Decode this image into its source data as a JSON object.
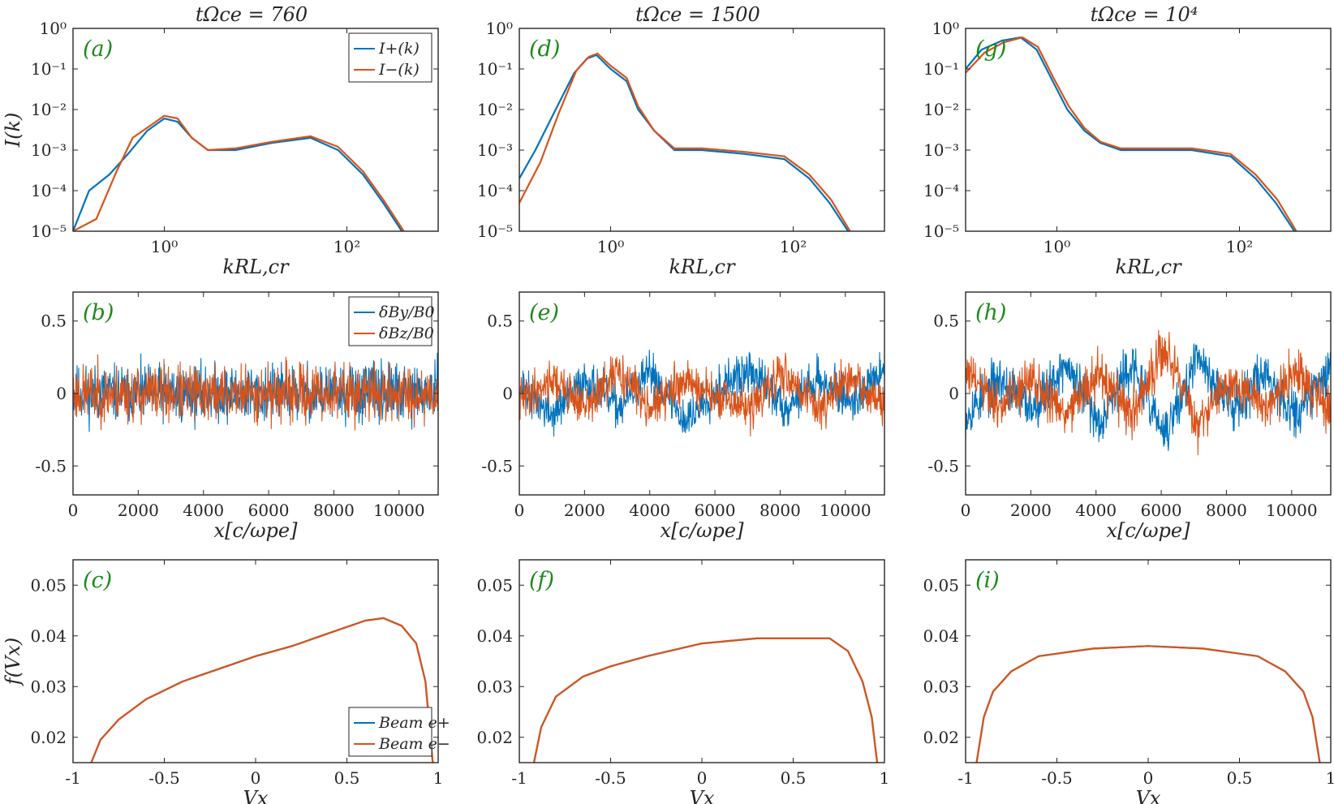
{
  "colors": {
    "series1": "#0072BD",
    "series2": "#D95319",
    "panel_label": "#1c8a1c",
    "axis": "#262626"
  },
  "column_titles": [
    "tΩce = 760",
    "tΩce = 1500",
    "tΩce = 10⁴"
  ],
  "chart_data": [
    {
      "type": "line",
      "panel": "(a)",
      "row": 0,
      "col": 0,
      "xscale": "log",
      "yscale": "log",
      "xlabel": "kRL,cr",
      "ylabel": "I(k)",
      "xlim": [
        0.1,
        1000
      ],
      "ylim": [
        1e-05,
        1
      ],
      "xticks": [
        {
          "v": 1,
          "label": "10⁰"
        },
        {
          "v": 100,
          "label": "10²"
        }
      ],
      "yticks": [
        {
          "v": 1e-05,
          "label": "10⁻⁵"
        },
        {
          "v": 0.0001,
          "label": "10⁻⁴"
        },
        {
          "v": 0.001,
          "label": "10⁻³"
        },
        {
          "v": 0.01,
          "label": "10⁻²"
        },
        {
          "v": 0.1,
          "label": "10⁻¹"
        },
        {
          "v": 1,
          "label": "10⁰"
        }
      ],
      "legend": "top-right",
      "series": [
        {
          "name": "I+(k)",
          "x": [
            0.1,
            0.15,
            0.25,
            0.4,
            0.65,
            1.0,
            1.4,
            2.0,
            3.0,
            6.0,
            15,
            40,
            80,
            150,
            250,
            400
          ],
          "y": [
            1e-05,
            0.0001,
            0.00025,
            0.0008,
            0.003,
            0.006,
            0.005,
            0.002,
            0.001,
            0.001,
            0.0015,
            0.002,
            0.001,
            0.00025,
            5e-05,
            1e-05
          ]
        },
        {
          "name": "I−(k)",
          "x": [
            0.1,
            0.18,
            0.3,
            0.45,
            0.7,
            1.0,
            1.4,
            2.0,
            3.0,
            6.0,
            15,
            40,
            80,
            150,
            250,
            420
          ],
          "y": [
            1e-05,
            2e-05,
            0.0003,
            0.002,
            0.004,
            0.007,
            0.006,
            0.002,
            0.001,
            0.0011,
            0.0016,
            0.0022,
            0.0012,
            0.0003,
            6e-05,
            1e-05
          ]
        }
      ]
    },
    {
      "type": "line",
      "panel": "(d)",
      "row": 0,
      "col": 1,
      "xscale": "log",
      "yscale": "log",
      "xlabel": "kRL,cr",
      "ylabel": "",
      "xlim": [
        0.1,
        1000
      ],
      "ylim": [
        1e-05,
        1
      ],
      "xticks": [
        {
          "v": 1,
          "label": "10⁰"
        },
        {
          "v": 100,
          "label": "10²"
        }
      ],
      "yticks": [
        {
          "v": 1e-05,
          "label": "10⁻⁵"
        },
        {
          "v": 0.0001,
          "label": "10⁻⁴"
        },
        {
          "v": 0.001,
          "label": "10⁻³"
        },
        {
          "v": 0.01,
          "label": "10⁻²"
        },
        {
          "v": 0.1,
          "label": "10⁻¹"
        },
        {
          "v": 1,
          "label": "10⁰"
        }
      ],
      "series": [
        {
          "name": "",
          "x": [
            0.1,
            0.15,
            0.25,
            0.4,
            0.55,
            0.7,
            1.0,
            1.5,
            2.0,
            3.0,
            5.0,
            10,
            30,
            80,
            150,
            250,
            400
          ],
          "y": [
            0.0002,
            0.001,
            0.01,
            0.08,
            0.18,
            0.22,
            0.1,
            0.05,
            0.01,
            0.003,
            0.001,
            0.001,
            0.0008,
            0.0006,
            0.0002,
            5e-05,
            1e-05
          ]
        },
        {
          "name": "",
          "x": [
            0.1,
            0.17,
            0.27,
            0.42,
            0.58,
            0.72,
            1.0,
            1.5,
            2.0,
            3.0,
            5.0,
            10,
            30,
            80,
            150,
            260,
            420
          ],
          "y": [
            5e-05,
            0.0005,
            0.008,
            0.09,
            0.2,
            0.24,
            0.12,
            0.06,
            0.012,
            0.003,
            0.0011,
            0.0011,
            0.0009,
            0.0007,
            0.00025,
            6e-05,
            1e-05
          ]
        }
      ]
    },
    {
      "type": "line",
      "panel": "(g)",
      "row": 0,
      "col": 2,
      "xscale": "log",
      "yscale": "log",
      "xlabel": "kRL,cr",
      "ylabel": "",
      "xlim": [
        0.1,
        1000
      ],
      "ylim": [
        1e-05,
        1
      ],
      "xticks": [
        {
          "v": 1,
          "label": "10⁰"
        },
        {
          "v": 100,
          "label": "10²"
        }
      ],
      "yticks": [
        {
          "v": 1e-05,
          "label": "10⁻⁵"
        },
        {
          "v": 0.0001,
          "label": "10⁻⁴"
        },
        {
          "v": 0.001,
          "label": "10⁻³"
        },
        {
          "v": 0.01,
          "label": "10⁻²"
        },
        {
          "v": 0.1,
          "label": "10⁻¹"
        },
        {
          "v": 1,
          "label": "10⁰"
        }
      ],
      "series": [
        {
          "name": "",
          "x": [
            0.1,
            0.15,
            0.25,
            0.4,
            0.6,
            0.9,
            1.3,
            2.0,
            3.0,
            5.0,
            10,
            30,
            80,
            150,
            250,
            400
          ],
          "y": [
            0.1,
            0.3,
            0.5,
            0.6,
            0.3,
            0.05,
            0.01,
            0.003,
            0.0015,
            0.001,
            0.001,
            0.001,
            0.0007,
            0.0002,
            5e-05,
            1e-05
          ]
        },
        {
          "name": "",
          "x": [
            0.1,
            0.16,
            0.26,
            0.42,
            0.62,
            0.92,
            1.35,
            2.0,
            3.0,
            5.0,
            10,
            30,
            80,
            150,
            260,
            420
          ],
          "y": [
            0.08,
            0.25,
            0.45,
            0.6,
            0.35,
            0.06,
            0.012,
            0.0035,
            0.0016,
            0.0011,
            0.0011,
            0.0011,
            0.0008,
            0.00025,
            6e-05,
            1e-05
          ]
        }
      ]
    },
    {
      "type": "line",
      "panel": "(b)",
      "row": 1,
      "col": 0,
      "xlabel": "x[c/ωpe]",
      "ylabel": "",
      "xlim": [
        0,
        11200
      ],
      "ylim": [
        -0.7,
        0.7
      ],
      "xticks": [
        {
          "v": 0,
          "label": "0"
        },
        {
          "v": 2000,
          "label": "2000"
        },
        {
          "v": 4000,
          "label": "4000"
        },
        {
          "v": 6000,
          "label": "6000"
        },
        {
          "v": 8000,
          "label": "8000"
        },
        {
          "v": 10000,
          "label": "10000"
        }
      ],
      "yticks": [
        {
          "v": -0.5,
          "label": "-0.5"
        },
        {
          "v": 0,
          "label": "0"
        },
        {
          "v": 0.5,
          "label": "0.5"
        }
      ],
      "legend": "top-right",
      "series": [
        {
          "name": "δBy/B0",
          "x_range": [
            0,
            11200
          ],
          "n_points": 900,
          "amplitude": 0.12,
          "envelope": [
            0,
            0,
            0,
            0,
            0,
            0,
            0,
            0,
            0,
            0,
            0,
            0
          ],
          "seed": 11
        },
        {
          "name": "δBz/B0",
          "x_range": [
            0,
            11200
          ],
          "n_points": 900,
          "amplitude": 0.12,
          "envelope": [
            0,
            0,
            0,
            0,
            0,
            0,
            0,
            0,
            0,
            0,
            0,
            0
          ],
          "seed": 23
        }
      ]
    },
    {
      "type": "line",
      "panel": "(e)",
      "row": 1,
      "col": 1,
      "xlabel": "x[c/ωpe]",
      "ylabel": "",
      "xlim": [
        0,
        11200
      ],
      "ylim": [
        -0.7,
        0.7
      ],
      "xticks": [
        {
          "v": 0,
          "label": "0"
        },
        {
          "v": 2000,
          "label": "2000"
        },
        {
          "v": 4000,
          "label": "4000"
        },
        {
          "v": 6000,
          "label": "6000"
        },
        {
          "v": 8000,
          "label": "8000"
        },
        {
          "v": 10000,
          "label": "10000"
        }
      ],
      "yticks": [
        {
          "v": -0.5,
          "label": "-0.5"
        },
        {
          "v": 0,
          "label": "0"
        },
        {
          "v": 0.5,
          "label": "0.5"
        }
      ],
      "series": [
        {
          "name": "",
          "x_range": [
            0,
            11200
          ],
          "n_points": 900,
          "amplitude": 0.09,
          "envelope": [
            0.05,
            -0.15,
            0.1,
            -0.1,
            0.15,
            -0.2,
            0.05,
            0.15,
            -0.1,
            0.1,
            -0.05,
            0.15
          ],
          "seed": 37
        },
        {
          "name": "",
          "x_range": [
            0,
            11200
          ],
          "n_points": 900,
          "amplitude": 0.09,
          "envelope": [
            -0.05,
            0.1,
            -0.1,
            0.15,
            -0.1,
            0.1,
            -0.05,
            -0.1,
            0.15,
            -0.1,
            0.1,
            -0.1
          ],
          "seed": 41
        }
      ]
    },
    {
      "type": "line",
      "panel": "(h)",
      "row": 1,
      "col": 2,
      "xlabel": "x[c/ωpe]",
      "ylabel": "",
      "xlim": [
        0,
        11200
      ],
      "ylim": [
        -0.7,
        0.7
      ],
      "xticks": [
        {
          "v": 0,
          "label": "0"
        },
        {
          "v": 2000,
          "label": "2000"
        },
        {
          "v": 4000,
          "label": "4000"
        },
        {
          "v": 6000,
          "label": "6000"
        },
        {
          "v": 8000,
          "label": "8000"
        },
        {
          "v": 10000,
          "label": "10000"
        }
      ],
      "yticks": [
        {
          "v": -0.5,
          "label": "-0.5"
        },
        {
          "v": 0,
          "label": "0"
        },
        {
          "v": 0.5,
          "label": "0.5"
        }
      ],
      "series": [
        {
          "name": "",
          "x_range": [
            0,
            11200
          ],
          "n_points": 900,
          "amplitude": 0.1,
          "envelope": [
            -0.15,
            0.1,
            -0.1,
            0.2,
            -0.2,
            0.2,
            -0.3,
            0.25,
            -0.1,
            0.15,
            -0.15,
            0.2
          ],
          "seed": 53
        },
        {
          "name": "",
          "x_range": [
            0,
            11200
          ],
          "n_points": 900,
          "amplitude": 0.1,
          "envelope": [
            0.15,
            -0.1,
            0.1,
            -0.15,
            0.15,
            -0.15,
            0.3,
            -0.2,
            0.1,
            -0.1,
            0.15,
            -0.15
          ],
          "seed": 61
        }
      ]
    },
    {
      "type": "line",
      "panel": "(c)",
      "row": 2,
      "col": 0,
      "xlabel": "Vx",
      "ylabel": "f(Vx)",
      "xlim": [
        -1,
        1
      ],
      "ylim": [
        0.015,
        0.055
      ],
      "xticks": [
        {
          "v": -1,
          "label": "-1"
        },
        {
          "v": -0.5,
          "label": "-0.5"
        },
        {
          "v": 0,
          "label": "0"
        },
        {
          "v": 0.5,
          "label": "0.5"
        },
        {
          "v": 1,
          "label": "1"
        }
      ],
      "yticks": [
        {
          "v": 0.02,
          "label": "0.02"
        },
        {
          "v": 0.03,
          "label": "0.03"
        },
        {
          "v": 0.04,
          "label": "0.04"
        },
        {
          "v": 0.05,
          "label": "0.05"
        }
      ],
      "legend": "bottom-right",
      "series": [
        {
          "name": "Beam e+",
          "x": [
            -0.9,
            -0.85,
            -0.75,
            -0.6,
            -0.4,
            -0.2,
            0,
            0.2,
            0.4,
            0.6,
            0.7,
            0.8,
            0.88,
            0.93,
            0.97
          ],
          "y": [
            0.015,
            0.0195,
            0.0235,
            0.0275,
            0.031,
            0.0335,
            0.036,
            0.038,
            0.0405,
            0.043,
            0.0435,
            0.042,
            0.0385,
            0.031,
            0.015
          ]
        },
        {
          "name": "Beam e−",
          "x": [
            -0.9,
            -0.85,
            -0.75,
            -0.6,
            -0.4,
            -0.2,
            0,
            0.2,
            0.4,
            0.6,
            0.7,
            0.8,
            0.88,
            0.93,
            0.97
          ],
          "y": [
            0.015,
            0.0195,
            0.0235,
            0.0275,
            0.031,
            0.0335,
            0.036,
            0.038,
            0.0405,
            0.043,
            0.0435,
            0.042,
            0.0385,
            0.031,
            0.015
          ]
        }
      ]
    },
    {
      "type": "line",
      "panel": "(f)",
      "row": 2,
      "col": 1,
      "xlabel": "Vx",
      "ylabel": "",
      "xlim": [
        -1,
        1
      ],
      "ylim": [
        0.015,
        0.055
      ],
      "xticks": [
        {
          "v": -1,
          "label": "-1"
        },
        {
          "v": -0.5,
          "label": "-0.5"
        },
        {
          "v": 0,
          "label": "0"
        },
        {
          "v": 0.5,
          "label": "0.5"
        },
        {
          "v": 1,
          "label": "1"
        }
      ],
      "yticks": [
        {
          "v": 0.02,
          "label": "0.02"
        },
        {
          "v": 0.03,
          "label": "0.03"
        },
        {
          "v": 0.04,
          "label": "0.04"
        },
        {
          "v": 0.05,
          "label": "0.05"
        }
      ],
      "series": [
        {
          "name": "",
          "x": [
            -0.92,
            -0.88,
            -0.8,
            -0.65,
            -0.5,
            -0.3,
            0,
            0.3,
            0.5,
            0.7,
            0.8,
            0.88,
            0.93,
            0.96
          ],
          "y": [
            0.015,
            0.022,
            0.028,
            0.032,
            0.034,
            0.036,
            0.0385,
            0.0395,
            0.0395,
            0.0395,
            0.037,
            0.031,
            0.024,
            0.015
          ]
        },
        {
          "name": "",
          "x": [
            -0.92,
            -0.88,
            -0.8,
            -0.65,
            -0.5,
            -0.3,
            0,
            0.3,
            0.5,
            0.7,
            0.8,
            0.88,
            0.93,
            0.96
          ],
          "y": [
            0.015,
            0.022,
            0.028,
            0.032,
            0.034,
            0.036,
            0.0385,
            0.0395,
            0.0395,
            0.0395,
            0.037,
            0.031,
            0.024,
            0.015
          ]
        }
      ]
    },
    {
      "type": "line",
      "panel": "(i)",
      "row": 2,
      "col": 2,
      "xlabel": "Vx",
      "ylabel": "",
      "xlim": [
        -1,
        1
      ],
      "ylim": [
        0.015,
        0.055
      ],
      "xticks": [
        {
          "v": -1,
          "label": "-1"
        },
        {
          "v": -0.5,
          "label": "-0.5"
        },
        {
          "v": 0,
          "label": "0"
        },
        {
          "v": 0.5,
          "label": "0.5"
        },
        {
          "v": 1,
          "label": "1"
        }
      ],
      "yticks": [
        {
          "v": 0.02,
          "label": "0.02"
        },
        {
          "v": 0.03,
          "label": "0.03"
        },
        {
          "v": 0.04,
          "label": "0.04"
        },
        {
          "v": 0.05,
          "label": "0.05"
        }
      ],
      "series": [
        {
          "name": "",
          "x": [
            -0.94,
            -0.9,
            -0.85,
            -0.75,
            -0.6,
            -0.3,
            0,
            0.3,
            0.6,
            0.75,
            0.85,
            0.9,
            0.94
          ],
          "y": [
            0.015,
            0.024,
            0.029,
            0.033,
            0.036,
            0.0375,
            0.038,
            0.0375,
            0.036,
            0.033,
            0.029,
            0.024,
            0.015
          ]
        },
        {
          "name": "",
          "x": [
            -0.94,
            -0.9,
            -0.85,
            -0.75,
            -0.6,
            -0.3,
            0,
            0.3,
            0.6,
            0.75,
            0.85,
            0.9,
            0.94
          ],
          "y": [
            0.015,
            0.024,
            0.029,
            0.033,
            0.036,
            0.0375,
            0.038,
            0.0375,
            0.036,
            0.033,
            0.029,
            0.024,
            0.015
          ]
        }
      ]
    }
  ]
}
